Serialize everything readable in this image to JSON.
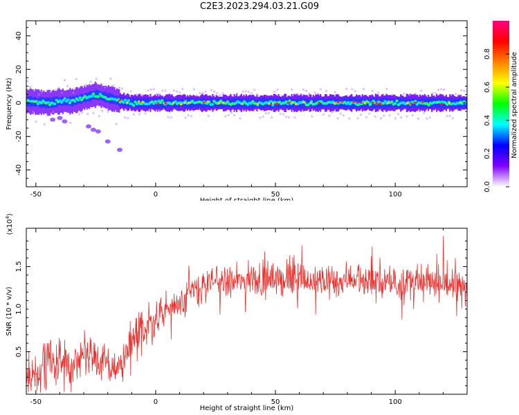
{
  "title": "C2E3.2023.294.03.21.G09",
  "chart_data": [
    {
      "type": "heatmap",
      "title": "",
      "xlabel": "Height of straight line (km)",
      "ylabel": "Frequency (Hz)",
      "xlim": [
        -54,
        130
      ],
      "ylim": [
        -50,
        49
      ],
      "xticks": [
        -50,
        0,
        50,
        100
      ],
      "yticks": [
        40,
        20,
        0,
        -20,
        -40
      ],
      "colorbar": {
        "label": "Normalized spectral amplitude",
        "range": [
          0.0,
          1.0
        ],
        "ticks": [
          "0.0",
          "0.2",
          "0.4",
          "0.6",
          "0.8"
        ],
        "colors": [
          "#ffffff",
          "#8000ff",
          "#0000ff",
          "#00ffff",
          "#00ff00",
          "#ffff00",
          "#ff8000",
          "#ff0000",
          "#ff0080"
        ]
      },
      "ridge": {
        "x": [
          -54,
          -45,
          -40,
          -35,
          -30,
          -25,
          -20,
          -15,
          -10,
          0,
          20,
          50,
          80,
          100,
          130
        ],
        "frequency_hz": [
          1,
          0,
          1,
          1,
          3,
          5,
          3,
          1,
          0,
          0,
          0,
          0,
          0,
          0,
          0
        ]
      },
      "scatter_features": [
        {
          "x": [
            -43,
            -40,
            -38
          ],
          "frequency_hz": [
            -10,
            -9,
            -11
          ]
        },
        {
          "x": [
            -28,
            -26,
            -24,
            -20,
            -15
          ],
          "frequency_hz": [
            -14,
            -16,
            -17,
            -23,
            -28
          ]
        }
      ]
    },
    {
      "type": "line",
      "title": "",
      "xlabel": "Height of straight line (km)",
      "ylabel": "SNR (10 * v/v)",
      "yunit_label": "(x10",
      "yunit_exponent": "4",
      "yunit_close": ")",
      "xlim": [
        -54,
        130
      ],
      "ylim": [
        0,
        1.95
      ],
      "xticks": [
        -50,
        0,
        50,
        100
      ],
      "yticks": [
        "0.5",
        "1.0",
        "1.5"
      ],
      "series": [
        {
          "color": "#e8302e",
          "x": [
            -54,
            -50,
            -45,
            -40,
            -35,
            -30,
            -25,
            -20,
            -15,
            -10,
            -5,
            0,
            5,
            10,
            15,
            20,
            25,
            30,
            40,
            50,
            60,
            70,
            80,
            85,
            90,
            100,
            110,
            120,
            130
          ],
          "values": [
            0.2,
            0.25,
            0.35,
            0.4,
            0.35,
            0.5,
            0.45,
            0.3,
            0.35,
            0.55,
            0.75,
            0.9,
            1.0,
            1.1,
            1.2,
            1.25,
            1.35,
            1.3,
            1.35,
            1.35,
            1.35,
            1.3,
            1.35,
            1.4,
            1.3,
            1.3,
            1.3,
            1.3,
            1.25
          ]
        }
      ]
    }
  ]
}
